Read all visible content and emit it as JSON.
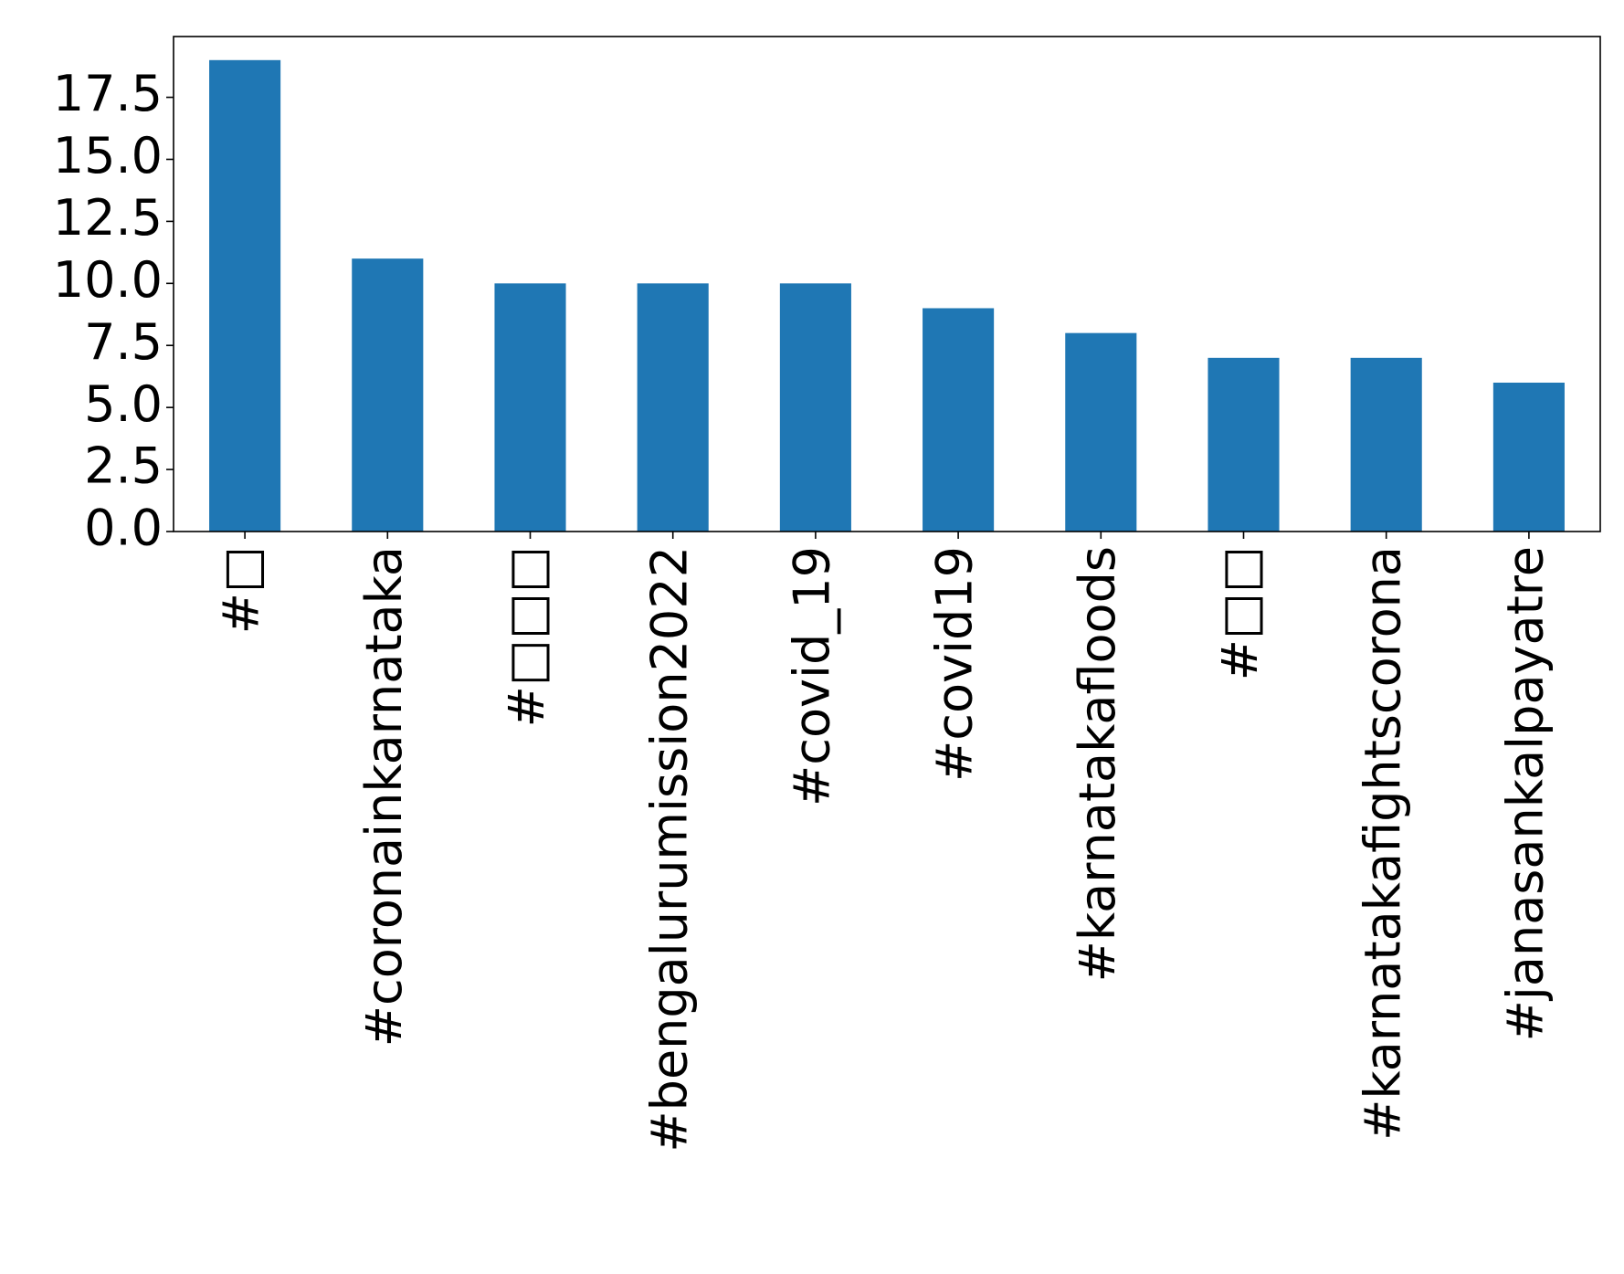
{
  "chart_data": {
    "type": "bar",
    "title": "",
    "xlabel": "",
    "ylabel": "",
    "categories": [
      "#□",
      "#coronainkarnataka",
      "#□□□",
      "#bengalurumission2022",
      "#covid_19",
      "#covid19",
      "#karnatakafloods",
      "#□□",
      "#karnatakafightscorona",
      "#janasankalpayatre"
    ],
    "values": [
      19,
      11,
      10,
      10,
      10,
      9,
      8,
      7,
      7,
      6
    ],
    "ylim": [
      0,
      19.95
    ],
    "yticks": [
      0.0,
      2.5,
      5.0,
      7.5,
      10.0,
      12.5,
      15.0,
      17.5
    ],
    "ytick_labels": [
      "0.0",
      "2.5",
      "5.0",
      "7.5",
      "10.0",
      "12.5",
      "15.0",
      "17.5"
    ],
    "bar_color": "#1f77b4",
    "grid": false,
    "legend": "none"
  }
}
